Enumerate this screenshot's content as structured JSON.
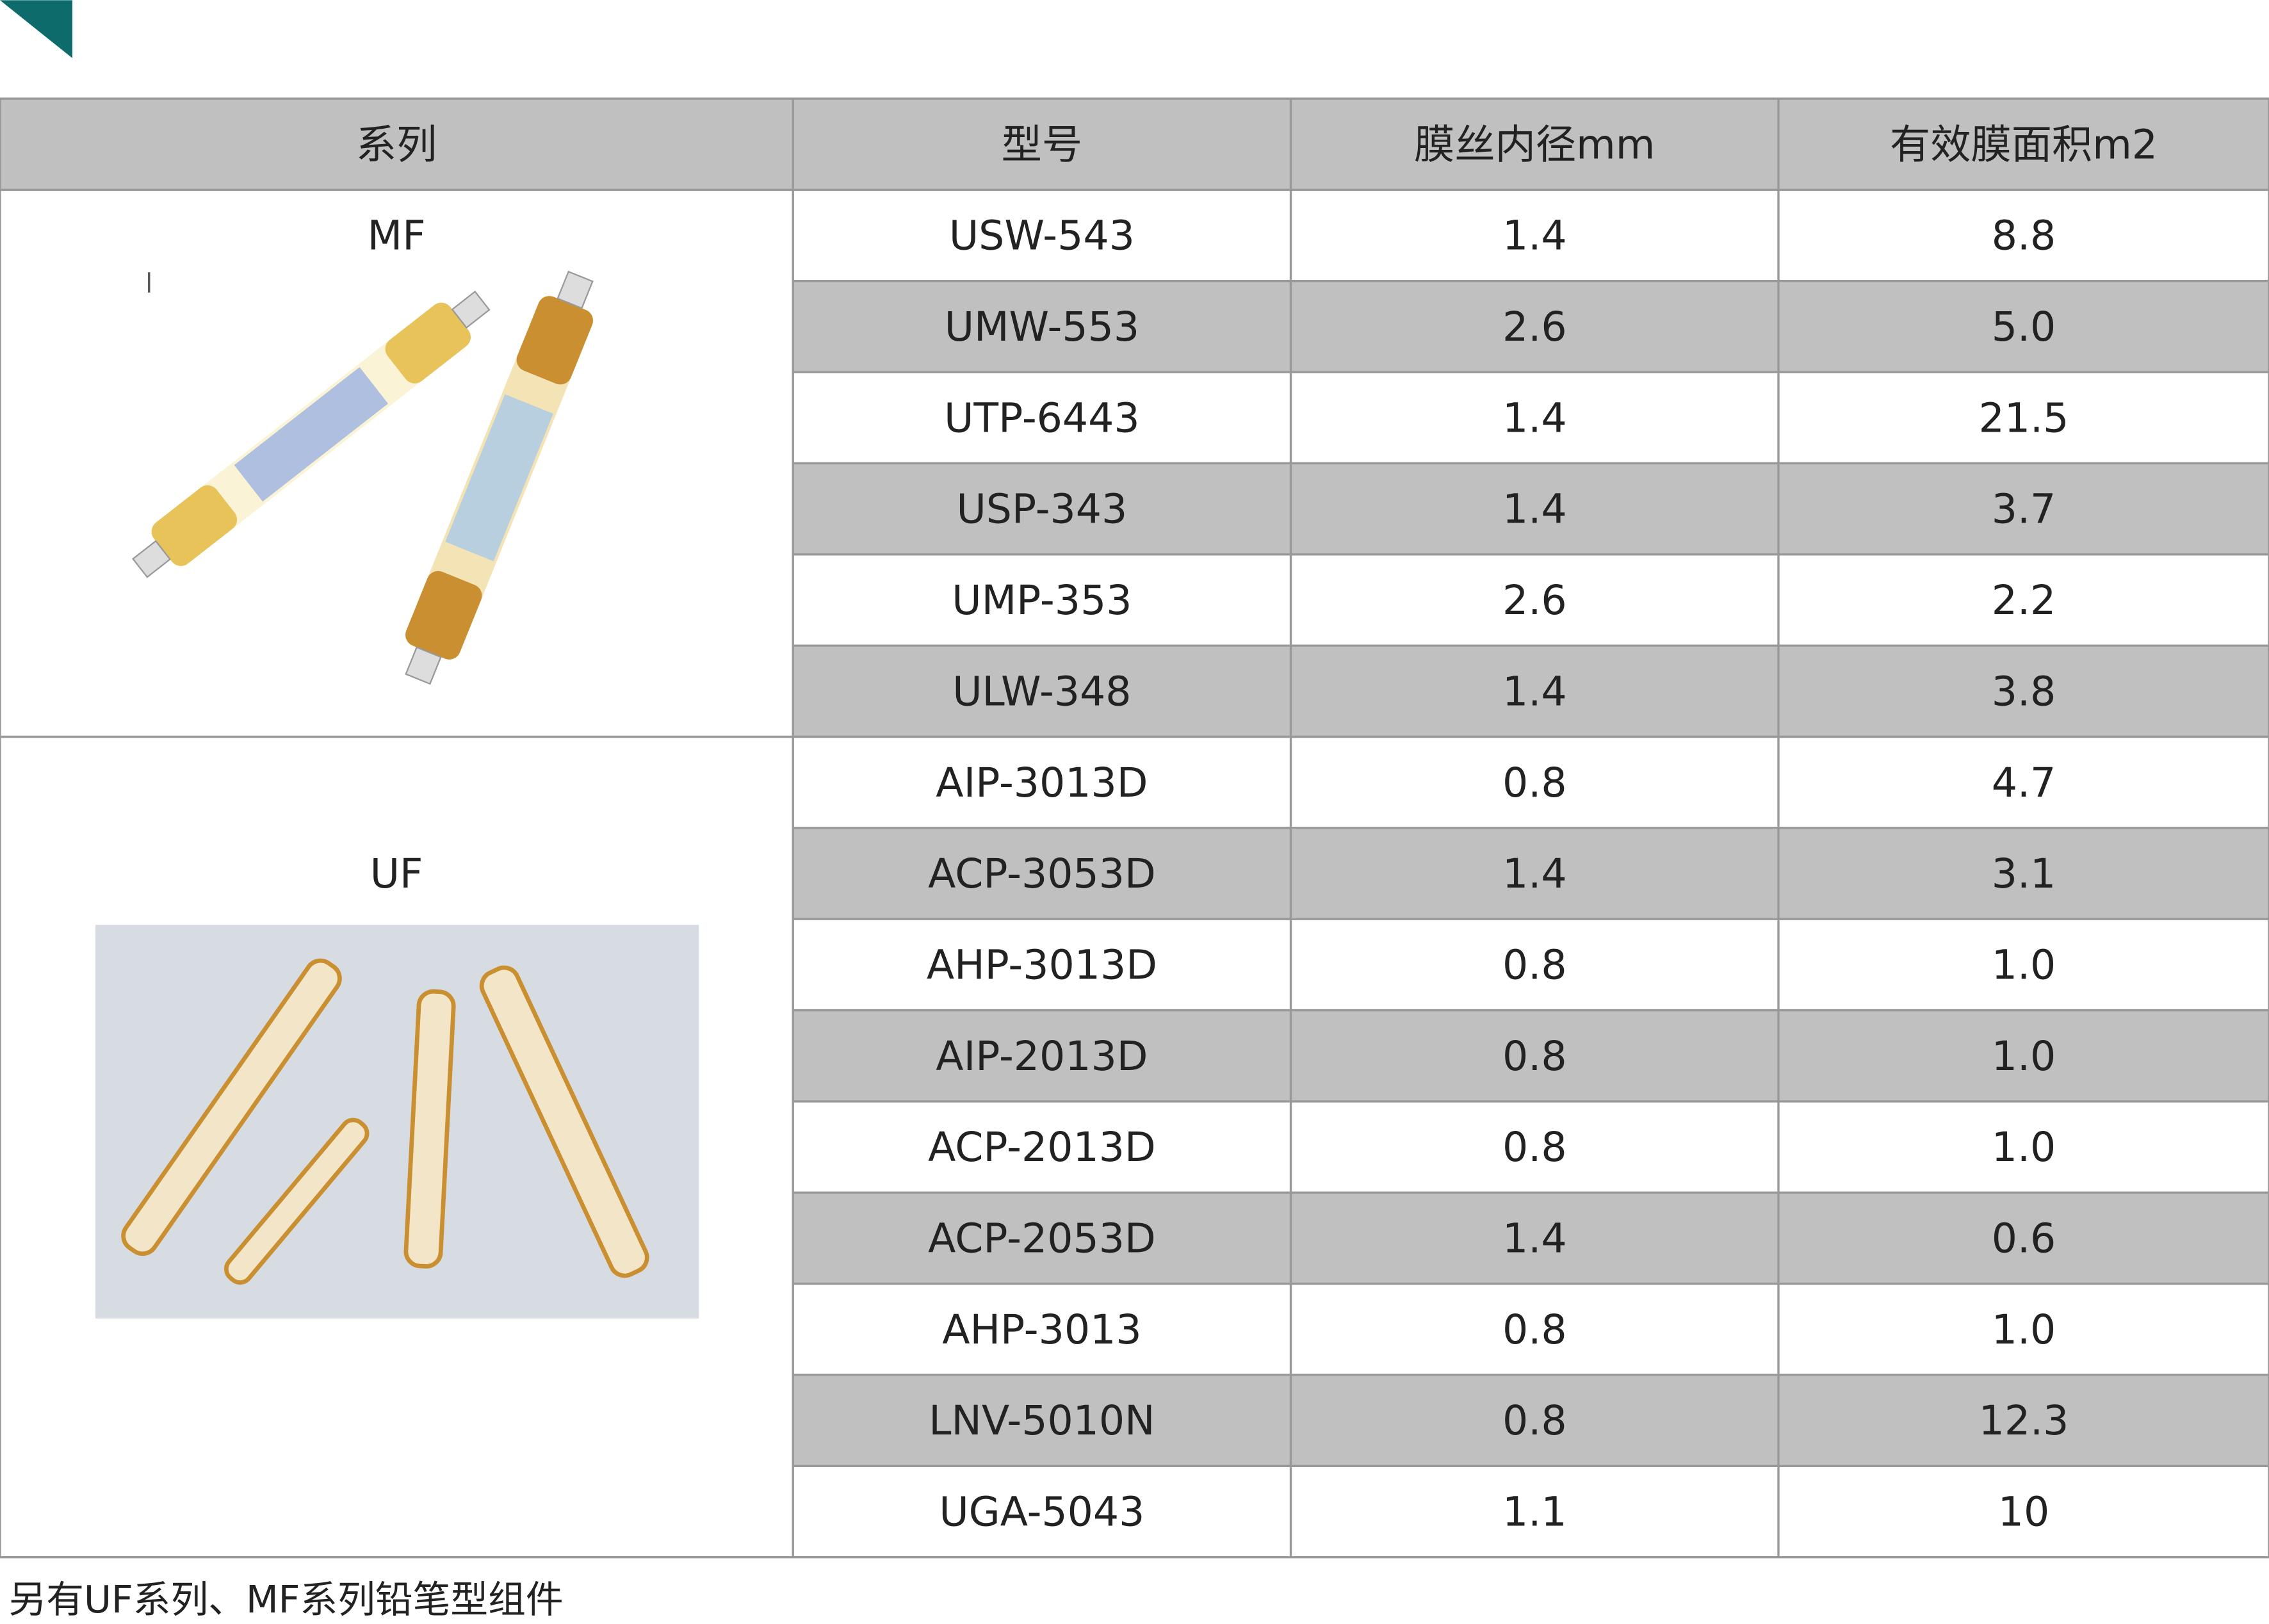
{
  "table": {
    "header": [
      "系列",
      "型号",
      "膜丝内径mm",
      "有效膜面积m2"
    ],
    "groups": [
      {
        "series": "MF",
        "rows": [
          [
            "USW-543",
            "1.4",
            "8.8"
          ],
          [
            "UMW-553",
            "2.6",
            "5.0"
          ],
          [
            "UTP-6443",
            "1.4",
            "21.5"
          ],
          [
            "USP-343",
            "1.4",
            "3.7"
          ],
          [
            "UMP-353",
            "2.6",
            "2.2"
          ],
          [
            "ULW-348",
            "1.4",
            "3.8"
          ]
        ]
      },
      {
        "series": "UF",
        "rows": [
          [
            "AIP-3013D",
            "0.8",
            "4.7"
          ],
          [
            "ACP-3053D",
            "1.4",
            "3.1"
          ],
          [
            "AHP-3013D",
            "0.8",
            "1.0"
          ],
          [
            "AIP-2013D",
            "0.8",
            "1.0"
          ],
          [
            "ACP-2013D",
            "0.8",
            "1.0"
          ],
          [
            "ACP-2053D",
            "1.4",
            "0.6"
          ],
          [
            "AHP-3013",
            "0.8",
            "1.0"
          ],
          [
            "LNV-5010N",
            "0.8",
            "12.3"
          ],
          [
            "UGA-5043",
            "1.1",
            "10"
          ]
        ]
      }
    ]
  },
  "footer": "另有UF系列、MF系列铅笔型组件"
}
